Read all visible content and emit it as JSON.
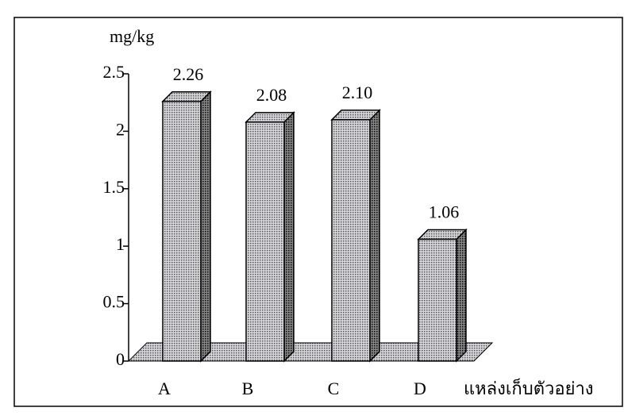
{
  "chart_data": {
    "type": "bar3d",
    "y_label": "mg/kg",
    "x_label": "แหล่งเก็บตัวอย่าง",
    "categories": [
      "A",
      "B",
      "C",
      "D"
    ],
    "values": [
      2.26,
      2.08,
      2.1,
      1.06
    ],
    "value_labels": [
      "2.26",
      "2.08",
      "2.10",
      "1.06"
    ],
    "color": "#b8b8c0",
    "ylim": [
      0,
      2.5
    ],
    "yticks": [
      0,
      0.5,
      1,
      1.5,
      2,
      2.5
    ]
  }
}
